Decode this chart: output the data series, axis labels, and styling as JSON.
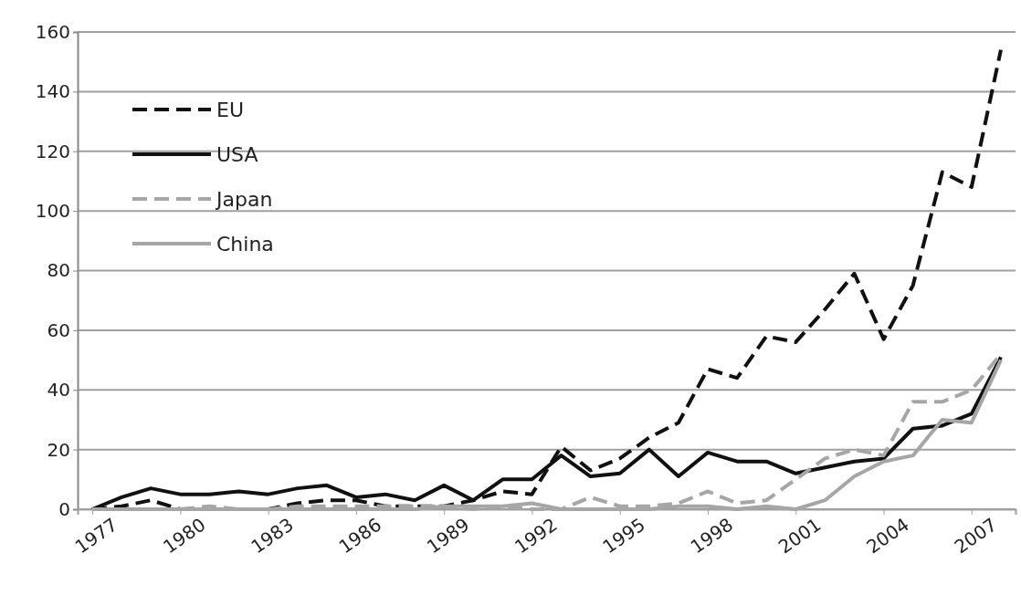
{
  "chart_data": {
    "type": "line",
    "x": [
      1977,
      1978,
      1979,
      1980,
      1981,
      1982,
      1983,
      1984,
      1985,
      1986,
      1987,
      1988,
      1989,
      1990,
      1991,
      1992,
      1993,
      1994,
      1995,
      1996,
      1997,
      1998,
      1999,
      2000,
      2001,
      2002,
      2003,
      2004,
      2005,
      2006,
      2007,
      2008
    ],
    "xlim": [
      1976.5,
      2008.5
    ],
    "xticks": [
      1977,
      1980,
      1983,
      1986,
      1989,
      1992,
      1995,
      1998,
      2001,
      2004,
      2007
    ],
    "ylim": [
      0,
      160
    ],
    "yticks": [
      0,
      20,
      40,
      60,
      80,
      100,
      120,
      140,
      160
    ],
    "grid": "y",
    "legend": "top left",
    "marker": "none",
    "series": [
      {
        "name": "EU",
        "color": "#111111",
        "line_style": "dashed",
        "values": [
          0,
          1,
          3,
          0,
          0,
          0,
          0,
          2,
          3,
          3,
          1,
          1,
          1,
          3,
          6,
          5,
          21,
          13,
          17,
          24,
          29,
          47,
          44,
          58,
          56,
          67,
          79,
          57,
          75,
          113,
          108,
          154
        ]
      },
      {
        "name": "USA",
        "color": "#111111",
        "line_style": "solid",
        "values": [
          0,
          4,
          7,
          5,
          5,
          6,
          5,
          7,
          8,
          4,
          5,
          3,
          8,
          3,
          10,
          10,
          18,
          11,
          12,
          20,
          11,
          19,
          16,
          16,
          12,
          14,
          16,
          17,
          27,
          28,
          32,
          51
        ]
      },
      {
        "name": "Japan",
        "color": "#a6a6a6",
        "line_style": "dashed",
        "values": [
          0,
          0,
          0,
          0,
          1,
          0,
          0,
          1,
          1,
          1,
          1,
          1,
          1,
          0,
          1,
          0,
          0,
          4,
          1,
          1,
          2,
          6,
          2,
          3,
          10,
          17,
          20,
          18,
          36,
          36,
          40,
          52
        ]
      },
      {
        "name": "China",
        "color": "#a6a6a6",
        "line_style": "solid",
        "values": [
          0,
          0,
          0,
          0,
          0,
          0,
          0,
          0,
          0,
          0,
          0,
          0,
          1,
          1,
          1,
          2,
          0,
          0,
          0,
          0,
          1,
          1,
          0,
          1,
          0,
          3,
          11,
          16,
          18,
          30,
          29,
          50
        ]
      }
    ]
  }
}
